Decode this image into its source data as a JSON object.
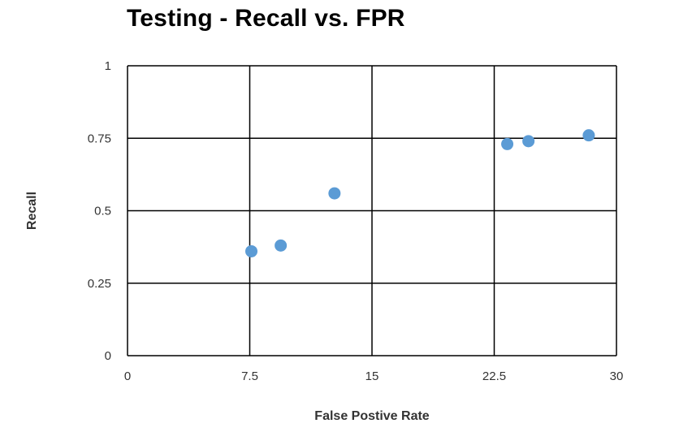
{
  "chart_data": {
    "type": "scatter",
    "title": "Testing - Recall vs. FPR",
    "xlabel": "False Postive Rate",
    "ylabel": "Recall",
    "xlim": [
      0,
      30
    ],
    "ylim": [
      0,
      1
    ],
    "xticks": [
      "0",
      "7.5",
      "15",
      "22.5",
      "30"
    ],
    "yticks": [
      "0",
      "0.25",
      "0.5",
      "0.75",
      "1"
    ],
    "grid": true,
    "legend": "none",
    "series": [
      {
        "color": "#5b9bd5",
        "points": [
          {
            "x": 7.6,
            "y": 0.36
          },
          {
            "x": 9.4,
            "y": 0.38
          },
          {
            "x": 12.7,
            "y": 0.56
          },
          {
            "x": 23.3,
            "y": 0.73
          },
          {
            "x": 24.6,
            "y": 0.74
          },
          {
            "x": 28.3,
            "y": 0.76
          }
        ]
      }
    ]
  }
}
